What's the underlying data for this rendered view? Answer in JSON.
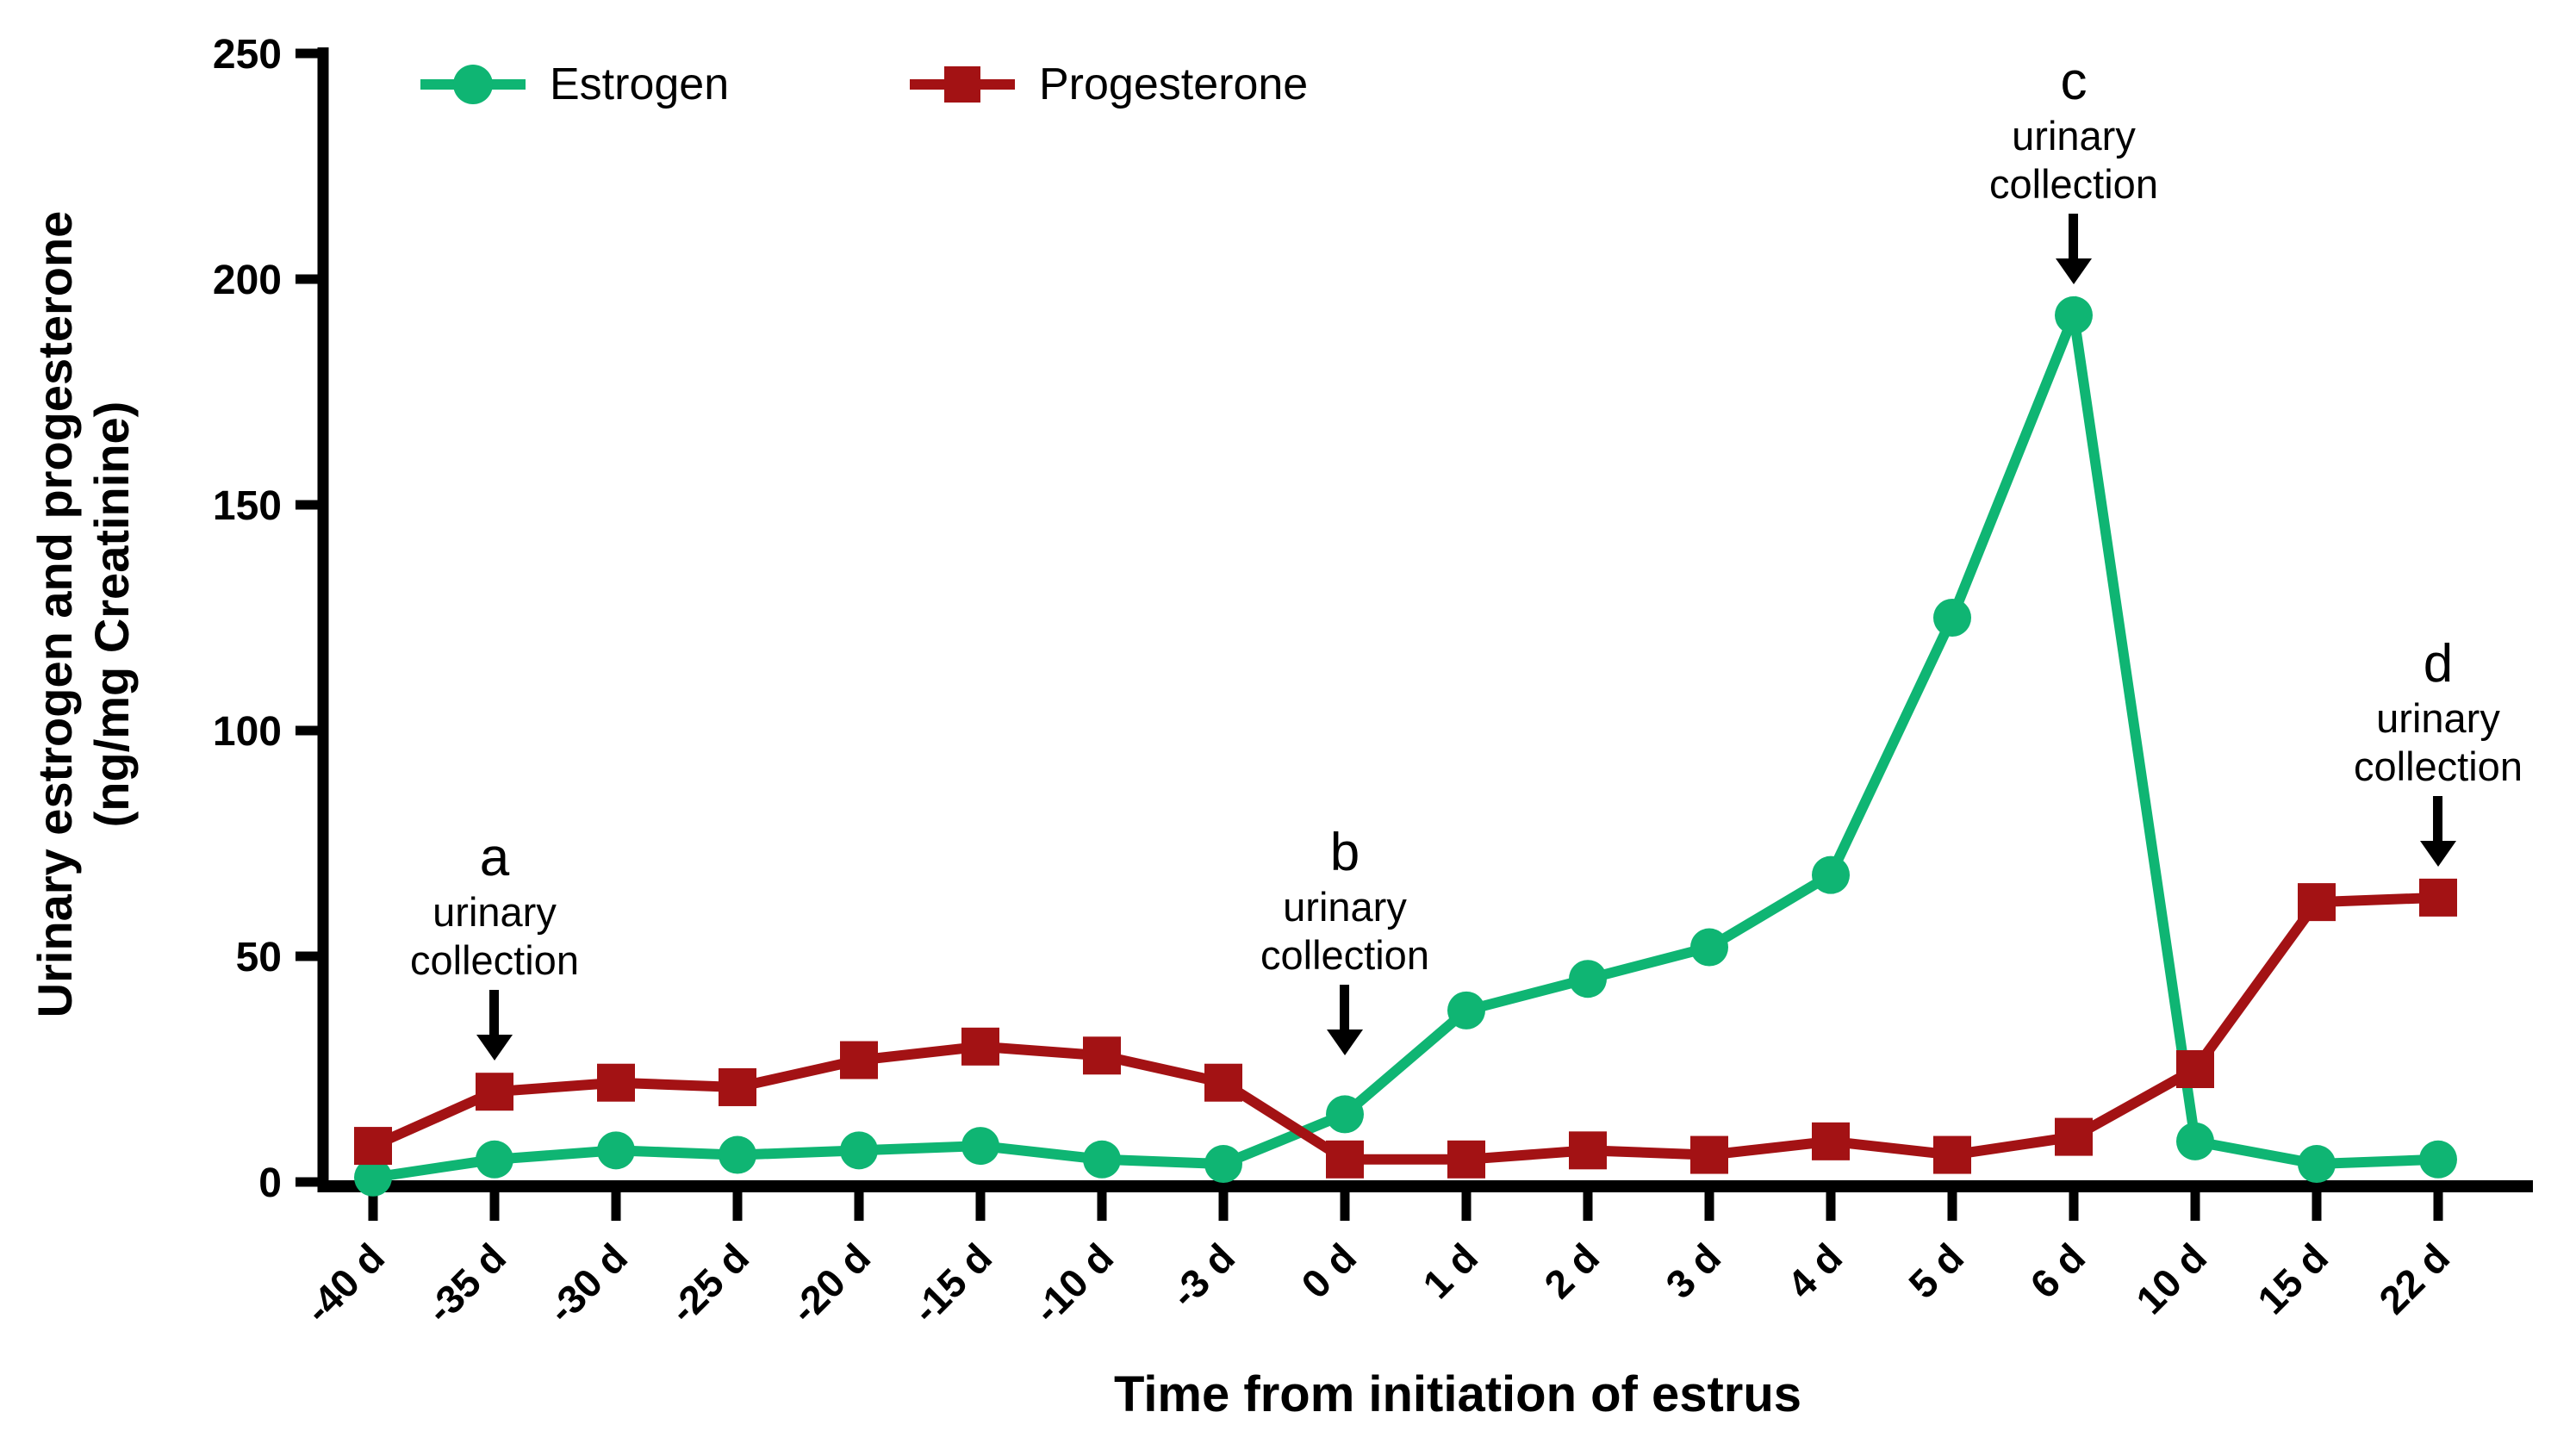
{
  "chart_data": {
    "type": "line",
    "title": "",
    "xlabel": "Time from initiation of estrus",
    "ylabel_line1": "Urinary estrogen and progesterone",
    "ylabel_line2": "(ng/mg Creatinine)",
    "categories": [
      "-40 d",
      "-35 d",
      "-30 d",
      "-25 d",
      "-20 d",
      "-15 d",
      "-10 d",
      "-3 d",
      "0 d",
      "1 d",
      "2 d",
      "3 d",
      "4 d",
      "5 d",
      "6 d",
      "10 d",
      "15 d",
      "22 d"
    ],
    "series": [
      {
        "name": "Estrogen",
        "marker": "circle",
        "color": "#0FB573",
        "values": [
          1,
          5,
          7,
          6,
          7,
          8,
          5,
          4,
          15,
          38,
          45,
          52,
          68,
          125,
          192,
          9,
          4,
          5
        ]
      },
      {
        "name": "Progesterone",
        "marker": "square",
        "color": "#A31214",
        "values": [
          8,
          20,
          22,
          21,
          27,
          30,
          28,
          22,
          5,
          5,
          7,
          6,
          9,
          6,
          10,
          25,
          62,
          63
        ]
      }
    ],
    "ylim": [
      0,
      250
    ],
    "ytick_step": 50,
    "grid": "off",
    "legend_position": "top-left inside",
    "annotations": [
      {
        "letter": "a",
        "line1": "urinary",
        "line2": "collection",
        "target_series": 1,
        "target_index": 1,
        "clearance": 30
      },
      {
        "letter": "b",
        "line1": "urinary",
        "line2": "collection",
        "target_series": 0,
        "target_index": 8,
        "clearance": 62
      },
      {
        "letter": "c",
        "line1": "urinary",
        "line2": "collection",
        "target_series": 0,
        "target_index": 14,
        "clearance": 30
      },
      {
        "letter": "d",
        "line1": "urinary",
        "line2": "collection",
        "target_series": 1,
        "target_index": 17,
        "clearance": 30
      }
    ]
  },
  "legend": {
    "items": [
      {
        "label": "Estrogen",
        "color": "#0FB573",
        "marker": "circle"
      },
      {
        "label": "Progesterone",
        "color": "#A31214",
        "marker": "square"
      }
    ]
  },
  "axis_color": "#000000",
  "background_color": "#ffffff"
}
